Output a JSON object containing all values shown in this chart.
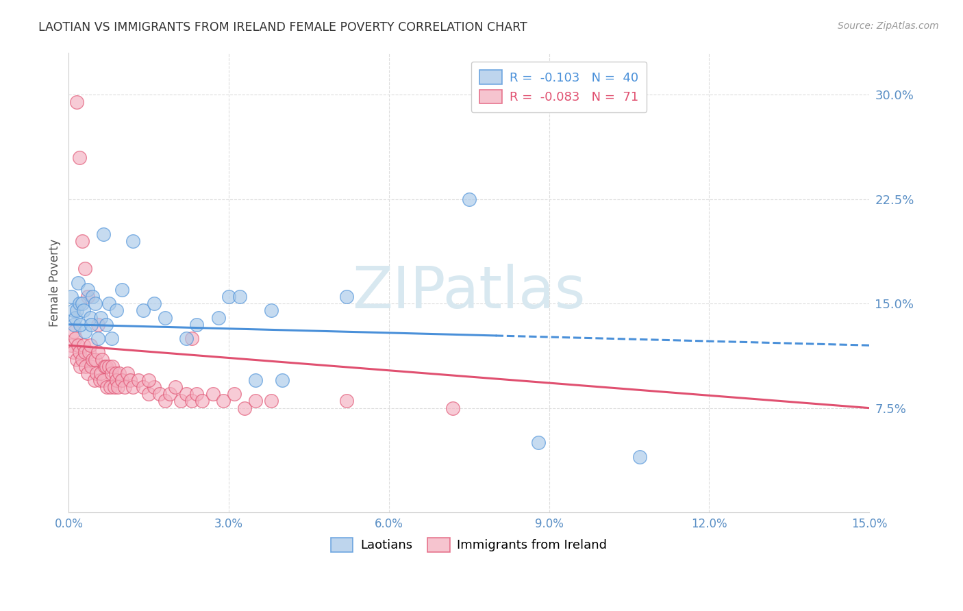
{
  "title": "LAOTIAN VS IMMIGRANTS FROM IRELAND FEMALE POVERTY CORRELATION CHART",
  "source": "Source: ZipAtlas.com",
  "ylabel": "Female Poverty",
  "right_yticks": [
    7.5,
    15.0,
    22.5,
    30.0
  ],
  "right_yticklabels": [
    "7.5%",
    "15.0%",
    "22.5%",
    "30.0%"
  ],
  "xlim": [
    0.0,
    15.0
  ],
  "ylim": [
    0.0,
    33.0
  ],
  "xtick_vals": [
    0,
    3,
    6,
    9,
    12,
    15
  ],
  "xtick_labels": [
    "0.0%",
    "3.0%",
    "6.0%",
    "9.0%",
    "12.0%",
    "15.0%"
  ],
  "blue_color": "#a8c8e8",
  "pink_color": "#f4b0c0",
  "trend_blue_color": "#4a90d9",
  "trend_pink_color": "#e05070",
  "blue_intercept": 13.5,
  "blue_slope": -0.1,
  "blue_solid_end": 8.0,
  "pink_intercept": 12.0,
  "pink_slope": -0.3,
  "blue_scatter_x": [
    0.05,
    0.08,
    0.1,
    0.12,
    0.15,
    0.18,
    0.2,
    0.25,
    0.28,
    0.3,
    0.35,
    0.4,
    0.45,
    0.5,
    0.55,
    0.6,
    0.7,
    0.75,
    0.8,
    0.9,
    1.0,
    1.2,
    1.4,
    1.6,
    1.8,
    2.2,
    2.4,
    2.8,
    3.0,
    3.2,
    3.5,
    3.8,
    4.0,
    5.2,
    7.5,
    8.8,
    10.7,
    0.22,
    0.42,
    0.65
  ],
  "blue_scatter_y": [
    15.5,
    14.5,
    13.5,
    14.0,
    14.5,
    16.5,
    15.0,
    15.0,
    14.5,
    13.0,
    16.0,
    14.0,
    15.5,
    15.0,
    12.5,
    14.0,
    13.5,
    15.0,
    12.5,
    14.5,
    16.0,
    19.5,
    14.5,
    15.0,
    14.0,
    12.5,
    13.5,
    14.0,
    15.5,
    15.5,
    9.5,
    14.5,
    9.5,
    15.5,
    22.5,
    5.0,
    4.0,
    13.5,
    13.5,
    20.0
  ],
  "pink_scatter_x": [
    0.05,
    0.08,
    0.1,
    0.12,
    0.15,
    0.15,
    0.18,
    0.2,
    0.22,
    0.25,
    0.28,
    0.3,
    0.32,
    0.35,
    0.38,
    0.4,
    0.42,
    0.45,
    0.48,
    0.5,
    0.52,
    0.55,
    0.58,
    0.6,
    0.62,
    0.65,
    0.68,
    0.7,
    0.72,
    0.75,
    0.78,
    0.8,
    0.82,
    0.85,
    0.88,
    0.9,
    0.92,
    0.95,
    1.0,
    1.05,
    1.1,
    1.15,
    1.2,
    1.3,
    1.4,
    1.5,
    1.6,
    1.7,
    1.8,
    1.9,
    2.0,
    2.1,
    2.2,
    2.3,
    2.4,
    2.5,
    2.7,
    2.9,
    3.1,
    3.3,
    3.5,
    3.8,
    5.2,
    7.2,
    0.2,
    0.25,
    0.3,
    0.35,
    0.55,
    1.5,
    2.3
  ],
  "pink_scatter_y": [
    12.0,
    11.5,
    13.0,
    12.5,
    11.0,
    29.5,
    12.0,
    11.5,
    10.5,
    11.0,
    12.0,
    11.5,
    10.5,
    10.0,
    11.5,
    12.0,
    10.5,
    11.0,
    9.5,
    11.0,
    10.0,
    11.5,
    9.5,
    10.0,
    11.0,
    9.5,
    10.5,
    10.5,
    9.0,
    10.5,
    9.0,
    10.0,
    10.5,
    9.0,
    10.0,
    9.5,
    9.0,
    10.0,
    9.5,
    9.0,
    10.0,
    9.5,
    9.0,
    9.5,
    9.0,
    8.5,
    9.0,
    8.5,
    8.0,
    8.5,
    9.0,
    8.0,
    8.5,
    8.0,
    8.5,
    8.0,
    8.5,
    8.0,
    8.5,
    7.5,
    8.0,
    8.0,
    8.0,
    7.5,
    25.5,
    19.5,
    17.5,
    15.5,
    13.5,
    9.5,
    12.5
  ],
  "watermark": "ZIPatlas",
  "watermark_color": "#d8e8f0",
  "legend1_label": "R =  -0.103   N =  40",
  "legend2_label": "R =  -0.083   N =  71",
  "bottom_legend1": "Laotians",
  "bottom_legend2": "Immigrants from Ireland"
}
